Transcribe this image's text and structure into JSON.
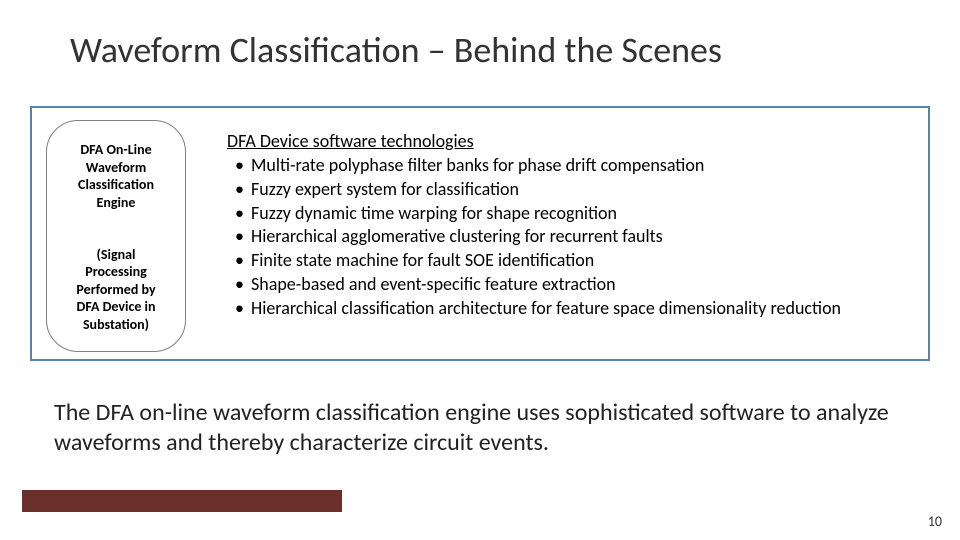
{
  "title": "Waveform Classification – Behind the Scenes",
  "box": {
    "border_color": "#5b82a3",
    "pill": {
      "top": "DFA On-Line\nWaveform\nClassification\nEngine",
      "bottom": "(Signal\nProcessing\nPerformed by\nDFA Device in\nSubstation)"
    },
    "tech_heading": "DFA Device software technologies",
    "tech_items": [
      "Multi-rate polyphase filter banks for phase drift compensation",
      "Fuzzy expert system for classification",
      "Fuzzy dynamic time warping for shape recognition",
      "Hierarchical agglomerative clustering for recurrent faults",
      "Finite state machine for fault SOE identification",
      "Shape-based and event-specific feature extraction",
      "Hierarchical classification architecture for feature space dimensionality reduction"
    ]
  },
  "summary": "The DFA on-line waveform classification engine uses sophisticated software to analyze waveforms and thereby characterize circuit events.",
  "footer": {
    "bar_color": "#6a2f2a"
  },
  "page_number": "10",
  "colors": {
    "title": "#3a3a3a",
    "text": "#222222"
  }
}
